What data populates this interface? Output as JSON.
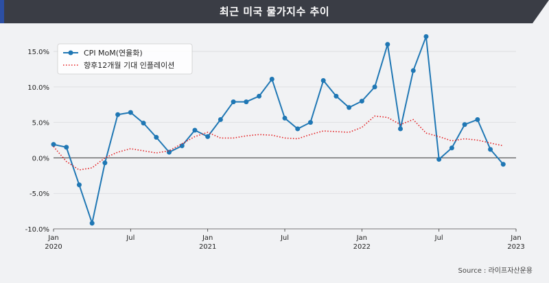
{
  "header": {
    "title": "최근 미국 물가지수 추이"
  },
  "source": "Source : 라이프자산운용",
  "colors": {
    "banner": "#3a3d45",
    "accent": "#2c4fa3",
    "cpi": "#1f77b4",
    "expect": "#e41a1c"
  },
  "chart_data": {
    "type": "line",
    "title": "",
    "xlabel": "",
    "ylabel": "",
    "ylim": [
      -10,
      18
    ],
    "grid": true,
    "legend_position": "top-left",
    "yticks": [
      -10,
      -5,
      0,
      5,
      10,
      15
    ],
    "ytick_labels": [
      "-10.0%",
      "-5.0%",
      "0.0%",
      "5.0%",
      "10.0%",
      "15.0%"
    ],
    "xticks": [
      {
        "date": "2020-01",
        "label": "Jan",
        "sublabel": "2020"
      },
      {
        "date": "2020-07",
        "label": "Jul",
        "sublabel": ""
      },
      {
        "date": "2021-01",
        "label": "Jan",
        "sublabel": "2021"
      },
      {
        "date": "2021-07",
        "label": "Jul",
        "sublabel": ""
      },
      {
        "date": "2022-01",
        "label": "Jan",
        "sublabel": "2022"
      },
      {
        "date": "2022-07",
        "label": "Jul",
        "sublabel": ""
      },
      {
        "date": "2023-01",
        "label": "Jan",
        "sublabel": "2023"
      }
    ],
    "x": [
      "2020-01",
      "2020-02",
      "2020-03",
      "2020-04",
      "2020-05",
      "2020-06",
      "2020-07",
      "2020-08",
      "2020-09",
      "2020-10",
      "2020-11",
      "2020-12",
      "2021-01",
      "2021-02",
      "2021-03",
      "2021-04",
      "2021-05",
      "2021-06",
      "2021-07",
      "2021-08",
      "2021-09",
      "2021-10",
      "2021-11",
      "2021-12",
      "2022-01",
      "2022-02",
      "2022-03",
      "2022-04",
      "2022-05",
      "2022-06",
      "2022-07",
      "2022-08",
      "2022-09",
      "2022-10",
      "2022-11",
      "2022-12"
    ],
    "series": [
      {
        "name": "CPI MoM(연율화)",
        "style": "solid-marker",
        "values": [
          1.9,
          1.5,
          -3.8,
          -9.2,
          -0.7,
          6.1,
          6.4,
          4.9,
          2.9,
          0.8,
          1.7,
          3.9,
          3.0,
          5.4,
          7.9,
          7.9,
          8.7,
          11.1,
          5.6,
          4.1,
          5.0,
          10.9,
          8.7,
          7.1,
          8.0,
          10.0,
          16.0,
          4.1,
          12.3,
          17.1,
          -0.2,
          1.4,
          4.7,
          5.4,
          1.2,
          -0.9
        ]
      },
      {
        "name": "향후12개월 기대 인플레이션",
        "style": "dotted",
        "values": [
          1.6,
          -0.5,
          -1.7,
          -1.4,
          0.0,
          0.8,
          1.3,
          1.0,
          0.7,
          1.0,
          2.0,
          3.0,
          3.6,
          2.8,
          2.8,
          3.1,
          3.3,
          3.2,
          2.8,
          2.7,
          3.3,
          3.8,
          3.7,
          3.6,
          4.3,
          5.9,
          5.7,
          4.7,
          5.4,
          3.5,
          3.0,
          2.4,
          2.7,
          2.5,
          2.1,
          1.7
        ]
      }
    ]
  }
}
